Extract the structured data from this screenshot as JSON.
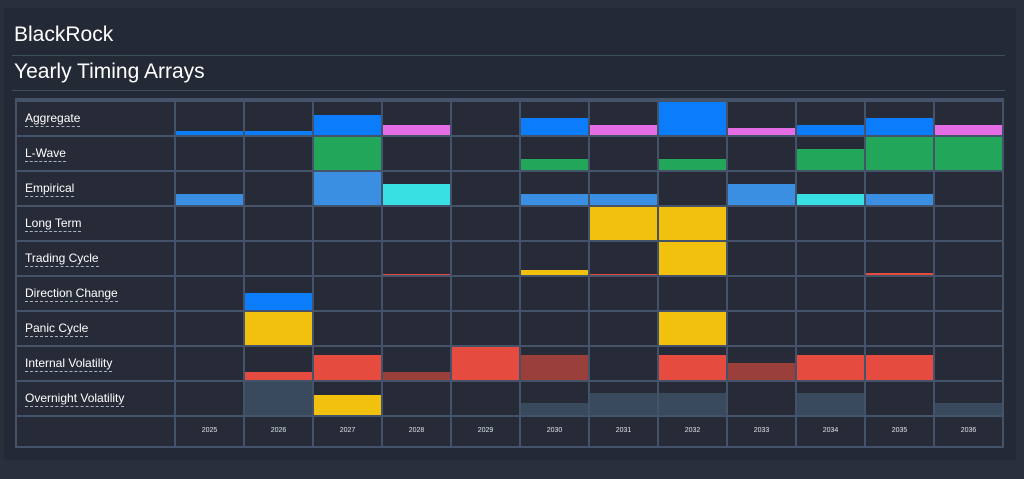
{
  "brand": "BlackRock",
  "page_title": "Yearly Timing Arrays",
  "chart_data": {
    "type": "heatmap",
    "title": "Yearly Timing Arrays",
    "years": [
      "2025",
      "2026",
      "2027",
      "2028",
      "2029",
      "2030",
      "2031",
      "2032",
      "2033",
      "2034",
      "2035",
      "2036"
    ],
    "value_scale": [
      0,
      1
    ],
    "colors": {
      "blue": "#0b7dfa",
      "pink": "#e46ce5",
      "green": "#22a659",
      "lightblue": "#3a8fe3",
      "cyan": "#39e0e3",
      "yellow": "#f2c10e",
      "red": "#e64b3f",
      "darkred": "#9b3f3b",
      "slate": "#394a5c"
    },
    "rows": [
      {
        "label": "Aggregate",
        "values": [
          0.12,
          0.12,
          0.6,
          0.3,
          0,
          0.5,
          0.3,
          1.0,
          0.2,
          0.3,
          0.5,
          0.3
        ],
        "colors": [
          "blue",
          "blue",
          "blue",
          "pink",
          "blue",
          "blue",
          "pink",
          "blue",
          "pink",
          "blue",
          "blue",
          "pink"
        ]
      },
      {
        "label": "L-Wave",
        "values": [
          0,
          0,
          1.0,
          0,
          0,
          0.32,
          0,
          0.32,
          0,
          0.65,
          1.0,
          1.0
        ],
        "colors": [
          "green",
          "green",
          "green",
          "green",
          "green",
          "green",
          "green",
          "green",
          "green",
          "green",
          "green",
          "green"
        ]
      },
      {
        "label": "Empirical",
        "values": [
          0.32,
          0,
          1.0,
          0.65,
          0,
          0.32,
          0.32,
          0,
          0.65,
          0.32,
          0.32,
          0
        ],
        "colors": [
          "lightblue",
          "lightblue",
          "lightblue",
          "cyan",
          "lightblue",
          "lightblue",
          "lightblue",
          "lightblue",
          "lightblue",
          "cyan",
          "lightblue",
          "lightblue"
        ]
      },
      {
        "label": "Long Term",
        "values": [
          0,
          0,
          0,
          0,
          0,
          0,
          1.0,
          1.0,
          0,
          0,
          0,
          0
        ],
        "colors": [
          "yellow",
          "yellow",
          "yellow",
          "yellow",
          "yellow",
          "yellow",
          "yellow",
          "yellow",
          "yellow",
          "yellow",
          "yellow",
          "yellow"
        ]
      },
      {
        "label": "Trading Cycle",
        "values": [
          0,
          0,
          0,
          0.04,
          0,
          0.14,
          0.04,
          1.0,
          0,
          0,
          0.06,
          0
        ],
        "colors": [
          "yellow",
          "yellow",
          "yellow",
          "red",
          "yellow",
          "yellow",
          "red",
          "yellow",
          "yellow",
          "yellow",
          "red",
          "yellow"
        ]
      },
      {
        "label": "Direction Change",
        "values": [
          0,
          0.5,
          0,
          0,
          0,
          0,
          0,
          0,
          0,
          0,
          0,
          0
        ],
        "colors": [
          "blue",
          "blue",
          "blue",
          "blue",
          "blue",
          "blue",
          "blue",
          "blue",
          "blue",
          "blue",
          "blue",
          "blue"
        ]
      },
      {
        "label": "Panic Cycle",
        "values": [
          0,
          1.0,
          0,
          0,
          0,
          0,
          0,
          1.0,
          0,
          0,
          0,
          0
        ],
        "colors": [
          "yellow",
          "yellow",
          "yellow",
          "yellow",
          "yellow",
          "yellow",
          "yellow",
          "yellow",
          "yellow",
          "yellow",
          "yellow",
          "yellow"
        ]
      },
      {
        "label": "Internal Volatility",
        "values": [
          0,
          0.25,
          0.75,
          0.25,
          1.0,
          0.75,
          0,
          0.75,
          0.5,
          0.75,
          0.75,
          0
        ],
        "colors": [
          "red",
          "red",
          "red",
          "darkred",
          "red",
          "darkred",
          "red",
          "red",
          "darkred",
          "red",
          "red",
          "red"
        ]
      },
      {
        "label": "Overnight Volatility",
        "values": [
          0,
          1.0,
          0.62,
          0,
          0,
          0.35,
          0.68,
          0.68,
          0,
          0.68,
          0,
          0.35
        ],
        "colors": [
          "slate",
          "slate",
          "yellow",
          "slate",
          "slate",
          "slate",
          "slate",
          "slate",
          "slate",
          "slate",
          "slate",
          "slate"
        ]
      }
    ]
  }
}
